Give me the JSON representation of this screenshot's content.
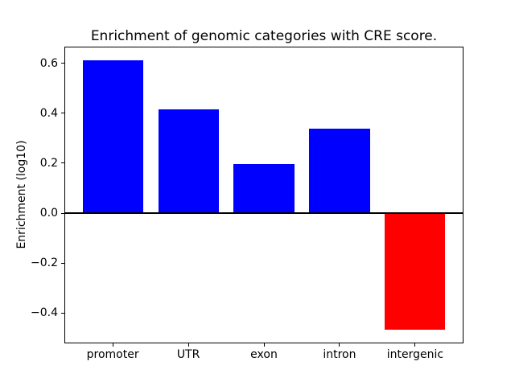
{
  "chart_data": {
    "type": "bar",
    "title": "Enrichment of genomic categories with CRE score.",
    "xlabel": "",
    "ylabel": "Enrichment (log10)",
    "categories": [
      "promoter",
      "UTR",
      "exon",
      "intron",
      "intergenic"
    ],
    "values": [
      0.613,
      0.416,
      0.197,
      0.339,
      -0.468
    ],
    "bar_colors": [
      "#0000ff",
      "#0000ff",
      "#0000ff",
      "#0000ff",
      "#ff0000"
    ],
    "positive_color": "#0000ff",
    "negative_color": "#ff0000",
    "yticks": [
      0.6,
      0.4,
      0.2,
      0.0,
      -0.2,
      -0.4
    ],
    "ytick_labels": [
      "0.6",
      "0.4",
      "0.2",
      "0.0",
      "−0.2",
      "−0.4"
    ],
    "ylim": [
      -0.522,
      0.667
    ],
    "xlim": [
      -0.64,
      4.64
    ],
    "bar_width": 0.8,
    "zero_line": true,
    "grid": false,
    "legend": null,
    "frame_color": "#000000",
    "background_color": "#ffffff"
  }
}
